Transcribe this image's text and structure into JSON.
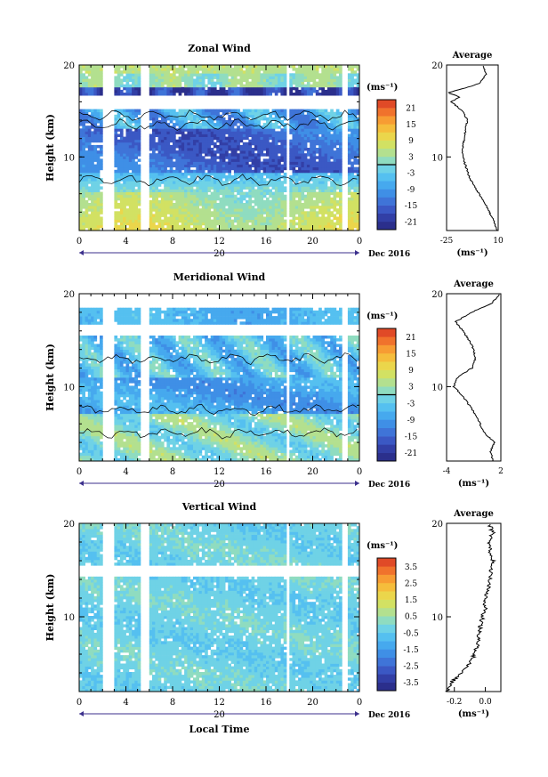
{
  "figure": {
    "xlabel_bottom": "Local Time",
    "date_label": "Dec 2016",
    "day_label": "20",
    "x_ticks": [
      "0",
      "4",
      "8",
      "12",
      "16",
      "20",
      "0"
    ],
    "unit_label": "(ms⁻¹)",
    "avg_title": "Average"
  },
  "chart_data": [
    {
      "type": "heatmap",
      "title": "Zonal Wind",
      "ylabel": "Height (km)",
      "x_range_hours": [
        0,
        24
      ],
      "ylim": [
        2,
        20
      ],
      "y_ticks": [
        "20",
        "10"
      ],
      "colorbar": {
        "min": -24,
        "max": 24,
        "tick_labels": [
          "21",
          "15",
          "9",
          "3",
          "-3",
          "-9",
          "-15",
          "-21"
        ],
        "zero_line": true
      },
      "data_gaps_hours": [
        [
          1.9,
          2.9
        ],
        [
          5.2,
          5.9
        ],
        [
          17.8,
          18.1
        ],
        [
          22.6,
          22.9
        ]
      ],
      "profile": {
        "title": "Average",
        "xlabel": "(ms⁻¹)",
        "x_ticks": [
          "-25",
          "10"
        ],
        "xlim": [
          -25,
          10
        ],
        "y_ticks": [
          "20",
          "10"
        ],
        "height_km": [
          2,
          3,
          4,
          5,
          6,
          7,
          8,
          9,
          10,
          11,
          12,
          13,
          14,
          15,
          16,
          16.5,
          17,
          17.5,
          18,
          19,
          20
        ],
        "value": [
          9,
          7,
          4,
          1,
          -3,
          -7,
          -10,
          -12,
          -14,
          -14,
          -13,
          -12,
          -11,
          -14,
          -22,
          -16,
          -24,
          -12,
          -3,
          2,
          -1
        ]
      }
    },
    {
      "type": "heatmap",
      "title": "Meridional Wind",
      "ylabel": "Height (km)",
      "x_range_hours": [
        0,
        24
      ],
      "ylim": [
        2,
        20
      ],
      "y_ticks": [
        "20",
        "10"
      ],
      "colorbar": {
        "min": -24,
        "max": 24,
        "tick_labels": [
          "21",
          "15",
          "9",
          "3",
          "-3",
          "-9",
          "-15",
          "-21"
        ],
        "zero_line": true
      },
      "data_gaps_hours": [
        [
          1.9,
          2.9
        ],
        [
          5.2,
          5.9
        ],
        [
          17.8,
          18.1
        ],
        [
          22.6,
          22.9
        ]
      ],
      "profile": {
        "title": "Average",
        "xlabel": "(ms⁻¹)",
        "x_ticks": [
          "-4",
          "2"
        ],
        "xlim": [
          -4,
          2
        ],
        "y_ticks": [
          "20",
          "10"
        ],
        "height_km": [
          2,
          3,
          4,
          5,
          6,
          7,
          8,
          9,
          10,
          11,
          12,
          13,
          14,
          15,
          16,
          17,
          18,
          19,
          20
        ],
        "value": [
          1.2,
          0.8,
          1.3,
          0.2,
          -0.3,
          -0.8,
          -1.5,
          -2.2,
          -3.2,
          -2.8,
          -1.2,
          -0.8,
          -1.0,
          -1.5,
          -2.2,
          -3.0,
          -1.2,
          1.0,
          2.0
        ]
      }
    },
    {
      "type": "heatmap",
      "title": "Vertical Wind",
      "ylabel": "Height (km)",
      "x_range_hours": [
        0,
        24
      ],
      "ylim": [
        2,
        20
      ],
      "y_ticks": [
        "20",
        "10"
      ],
      "colorbar": {
        "min": -4,
        "max": 4,
        "tick_labels": [
          "3.5",
          "2.5",
          "1.5",
          "0.5",
          "-0.5",
          "-1.5",
          "-2.5",
          "-3.5"
        ],
        "zero_line": false
      },
      "data_gaps_hours": [
        [
          1.9,
          2.9
        ],
        [
          5.2,
          5.9
        ],
        [
          17.8,
          18.1
        ],
        [
          22.6,
          22.9
        ]
      ],
      "profile": {
        "title": "Average",
        "xlabel": "(ms⁻¹)",
        "x_ticks": [
          "-0.2",
          "0.0"
        ],
        "xlim": [
          -0.25,
          0.1
        ],
        "y_ticks": [
          "20",
          "10"
        ],
        "height_km": [
          2,
          3,
          4,
          5,
          6,
          7,
          8,
          9,
          10,
          11,
          12,
          13,
          14,
          15,
          16,
          17,
          18,
          19,
          20
        ],
        "value": [
          -0.25,
          -0.22,
          -0.15,
          -0.1,
          -0.07,
          -0.05,
          -0.04,
          -0.03,
          -0.02,
          0.0,
          0.0,
          0.02,
          0.03,
          0.04,
          0.05,
          0.03,
          0.02,
          0.05,
          0.02
        ]
      }
    }
  ]
}
